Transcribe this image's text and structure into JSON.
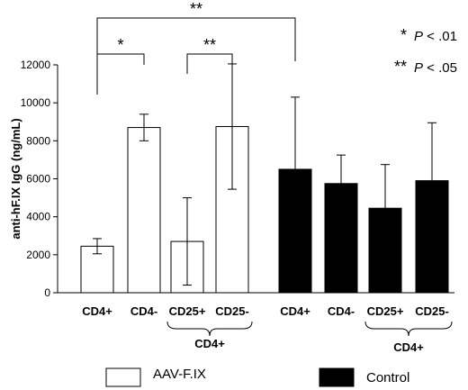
{
  "chart_data": {
    "type": "bar",
    "ylabel": "anti-hF.IX IgG (ng/mL)",
    "ylim": [
      0,
      12000
    ],
    "yticks": [
      0,
      2000,
      4000,
      6000,
      8000,
      10000,
      12000
    ],
    "groups": [
      {
        "name": "AAV-F.IX",
        "color": "#ffffff",
        "bars": [
          {
            "label": "CD4+",
            "value": 2450,
            "error": 400
          },
          {
            "label": "CD4-",
            "value": 8700,
            "error": 700
          },
          {
            "label": "CD25+",
            "value": 2700,
            "error": 2300
          },
          {
            "label": "CD25-",
            "value": 8750,
            "error": 3300
          }
        ],
        "bracket_label": "CD4+"
      },
      {
        "name": "Control",
        "color": "#000000",
        "bars": [
          {
            "label": "CD4+",
            "value": 6500,
            "error": 3800
          },
          {
            "label": "CD4-",
            "value": 5750,
            "error": 1500
          },
          {
            "label": "CD25+",
            "value": 4450,
            "error": 2300
          },
          {
            "label": "CD25-",
            "value": 5900,
            "error": 3050
          }
        ],
        "bracket_label": "CD4+"
      }
    ],
    "significance": [
      {
        "from": 0,
        "to": 1,
        "label": "*"
      },
      {
        "from": 2,
        "to": 3,
        "label": "**"
      },
      {
        "from": 0,
        "to": 4,
        "label": "**"
      }
    ],
    "pvalue_legend": [
      {
        "mark": "*",
        "text": "P < .01"
      },
      {
        "mark": "**",
        "text": "P < .05"
      }
    ],
    "legend": [
      {
        "name": "AAV-F.IX",
        "color": "#ffffff"
      },
      {
        "name": "Control",
        "color": "#000000"
      }
    ],
    "legend_placement": "bottom",
    "grid": false
  }
}
